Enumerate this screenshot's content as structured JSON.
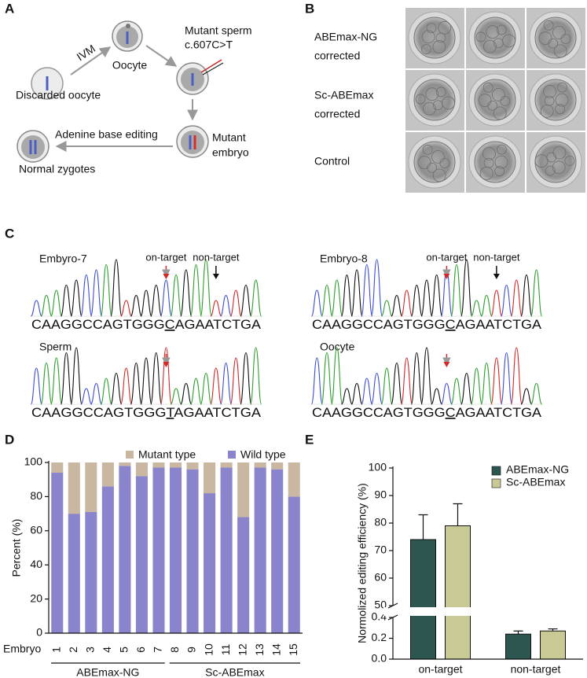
{
  "panel_a": {
    "label": "A",
    "ivm": "IVM",
    "discarded": "Discarded oocyte",
    "oocyte": "Oocyte",
    "sperm": [
      "Mutant sperm",
      "c.607C>T"
    ],
    "editing": "Adenine base editing",
    "embryo": [
      "Mutant",
      "embryo"
    ],
    "zygotes": "Normal zygotes"
  },
  "panel_b": {
    "label": "B",
    "rows": [
      [
        "ABEmax-NG",
        "corrected"
      ],
      [
        "Sc-ABEmax",
        "corrected"
      ],
      [
        "Control"
      ]
    ]
  },
  "panel_c": {
    "label": "C",
    "traces": [
      {
        "name": "Embyro-7",
        "before": "CAAGGCCAGTGGG",
        "marked": "C",
        "after": "AGAATCTGA",
        "on_target": "on-target",
        "non_target": "non-target"
      },
      {
        "name": "Embryo-8",
        "before": "CAAGGCCAGTGGG",
        "marked": "C",
        "after": "AGAATCTGA",
        "on_target": "on-target",
        "non_target": "non-target"
      },
      {
        "name": "Sperm",
        "before": "CAAGGCCAGTGGG",
        "marked": "T",
        "after": "AGAATCTGA"
      },
      {
        "name": "Oocyte",
        "before": "CAAGGCCAGTGGG",
        "marked": "C",
        "after": "AGAATCTGA"
      }
    ]
  },
  "chart_data": [
    {
      "type": "stacked_bar",
      "label": "D",
      "ylabel": "Percent (%)",
      "category_axis_label": "Embryo",
      "categories": [
        "1",
        "2",
        "3",
        "4",
        "5",
        "6",
        "7",
        "8",
        "9",
        "10",
        "11",
        "12",
        "13",
        "14",
        "15"
      ],
      "groups": [
        {
          "name": "ABEmax-NG",
          "size": 7
        },
        {
          "name": "Sc-ABEmax",
          "size": 8
        }
      ],
      "series": [
        {
          "name": "Mutant type",
          "color": "#c9b7a2",
          "values": [
            6,
            30,
            29,
            14,
            2,
            8,
            3,
            3,
            4,
            18,
            3,
            32,
            3,
            4,
            20
          ]
        },
        {
          "name": "Wild type",
          "color": "#8a84cc",
          "values": [
            94,
            70,
            71,
            86,
            98,
            92,
            97,
            97,
            96,
            82,
            97,
            68,
            97,
            96,
            80
          ]
        }
      ],
      "ylim": [
        0,
        100
      ],
      "yticks": [
        0,
        20,
        40,
        60,
        80,
        100
      ],
      "legend": "top"
    },
    {
      "type": "bar",
      "label": "E",
      "ylabel": "Normolized editing efficiency (%)",
      "categories": [
        "on-target",
        "non-target"
      ],
      "series": [
        {
          "name": "ABEmax-NG",
          "color": "#2d5650",
          "values": [
            74,
            0.24
          ],
          "errors": [
            9,
            0.03
          ]
        },
        {
          "name": "Sc-ABEmax",
          "color": "#c8c995",
          "values": [
            79,
            0.27
          ],
          "errors": [
            8,
            0.02
          ]
        }
      ],
      "ylim": [
        0,
        100
      ],
      "axis_break": [
        0.4,
        50
      ],
      "yticks": [
        {
          "value": 0,
          "label": "0.0"
        },
        0.2,
        0.4,
        50,
        60,
        70,
        80,
        90,
        100
      ],
      "legend": "upper right"
    }
  ]
}
